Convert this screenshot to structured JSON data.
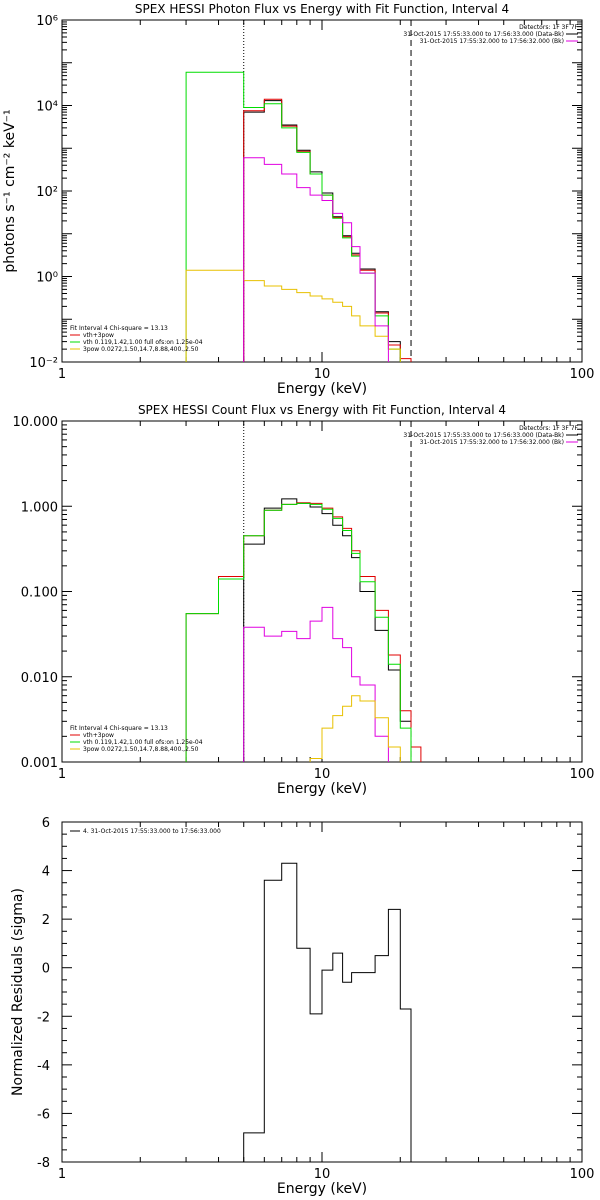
{
  "chart_data": [
    {
      "type": "step",
      "title": "SPEX HESSI Photon Flux vs Energy with Fit Function, Interval 4",
      "xlabel": "Energy (keV)",
      "ylabel": "photons s⁻¹ cm⁻² keV⁻¹",
      "xscale": "log",
      "yscale": "log",
      "xlim": [
        1,
        100
      ],
      "ylim": [
        0.01,
        1000000
      ],
      "x_ticks": [
        "1",
        "10",
        "100"
      ],
      "y_ticks": [
        "10⁻²",
        "10⁰",
        "10²",
        "10⁴",
        "10⁶"
      ],
      "vlines": [
        {
          "x": 5,
          "style": "dotted"
        },
        {
          "x": 22,
          "style": "dashed"
        }
      ],
      "header": {
        "detectors": "Detectors: 1F 3F 7F",
        "lines": [
          {
            "text": "31-Oct-2015 17:55:33.000 to 17:56:33.000 (Data-Bk)",
            "color": "#000000"
          },
          {
            "text": "31-Oct-2015 17:55:32.000 to 17:56:32.000 (Bk)",
            "color": "#e000e0"
          }
        ]
      },
      "legend": {
        "title": "Fit Interval  4    Chi-square = 13.13",
        "entries": [
          {
            "text": "vth+3pow",
            "color": "#e00000"
          },
          {
            "text": "vth 0.119,1.42,1.00  full ofs:on 1.25e-04",
            "color": "#00dd00"
          },
          {
            "text": "3pow 0.0272,1.50,14.7,8.88,400.,2.50",
            "color": "#e8c000"
          }
        ]
      },
      "edges": [
        3,
        4,
        5,
        6,
        7,
        8,
        9,
        10,
        11,
        12,
        13,
        14,
        16,
        18,
        20,
        22,
        24
      ],
      "series": [
        {
          "name": "Data-Bk",
          "color": "#000000",
          "x0": 5,
          "values": [
            7000,
            13000,
            3500,
            900,
            280,
            90,
            25,
            9,
            3.5,
            1.5,
            0.15,
            0.03
          ]
        },
        {
          "name": "vth+3pow",
          "color": "#e00000",
          "x0": 5,
          "values": [
            7500,
            14000,
            3300,
            850,
            250,
            80,
            24,
            8.5,
            3.2,
            1.4,
            0.14,
            0.025,
            0.012
          ]
        },
        {
          "name": "vth",
          "color": "#00dd00",
          "x0": 3,
          "values": [
            60000,
            60000,
            9000,
            11000,
            3000,
            800,
            250,
            80,
            23,
            8,
            3,
            1.2,
            0.12,
            0.02
          ]
        },
        {
          "name": "3pow",
          "color": "#e8c000",
          "x0": 3,
          "values": [
            1.4,
            1.4,
            0.8,
            0.6,
            0.5,
            0.42,
            0.35,
            0.3,
            0.25,
            0.2,
            0.12,
            0.07,
            0.04,
            0.02
          ]
        },
        {
          "name": "Bk",
          "color": "#e000e0",
          "x0": 5,
          "values": [
            600,
            420,
            250,
            120,
            80,
            60,
            30,
            18,
            5,
            1.2,
            0.07
          ]
        }
      ]
    },
    {
      "type": "step",
      "title": "SPEX HESSI Count Flux vs Energy with Fit Function, Interval 4",
      "xlabel": "Energy (keV)",
      "ylabel": "",
      "xscale": "log",
      "yscale": "log",
      "xlim": [
        1,
        100
      ],
      "ylim": [
        0.001,
        10
      ],
      "x_ticks": [
        "1",
        "10",
        "100"
      ],
      "y_ticks": [
        "0.001",
        "0.010",
        "0.100",
        "1.000",
        "10.000"
      ],
      "vlines": [
        {
          "x": 5,
          "style": "dotted"
        },
        {
          "x": 22,
          "style": "dashed"
        }
      ],
      "header": {
        "detectors": "Detectors: 1F 3F 7F",
        "lines": [
          {
            "text": "31-Oct-2015 17:55:33.000 to 17:56:33.000 (Data-Bk)",
            "color": "#000000"
          },
          {
            "text": "31-Oct-2015 17:55:32.000 to 17:56:32.000 (Bk)",
            "color": "#e000e0"
          }
        ]
      },
      "legend": {
        "title": "Fit Interval  4    Chi-square = 13.13",
        "entries": [
          {
            "text": "vth+3pow",
            "color": "#e00000"
          },
          {
            "text": "vth 0.119,1.42,1.00  full ofs:on 1.25e-04",
            "color": "#00dd00"
          },
          {
            "text": "3pow 0.0272,1.50,14.7,8.88,400.,2.50",
            "color": "#e8c000"
          }
        ]
      },
      "edges": [
        3,
        4,
        5,
        6,
        7,
        8,
        9,
        10,
        11,
        12,
        13,
        14,
        16,
        18,
        20,
        22,
        24
      ],
      "series": [
        {
          "name": "Data-Bk",
          "color": "#000000",
          "x0": 5,
          "values": [
            0.36,
            0.95,
            1.22,
            1.08,
            0.98,
            0.82,
            0.6,
            0.45,
            0.25,
            0.1,
            0.035,
            0.012,
            0.003
          ]
        },
        {
          "name": "vth+3pow",
          "color": "#e00000",
          "x0": 3,
          "values": [
            0.055,
            0.15,
            0.45,
            0.9,
            1.05,
            1.1,
            1.08,
            0.95,
            0.75,
            0.55,
            0.3,
            0.15,
            0.06,
            0.018,
            0.004,
            0.0015
          ]
        },
        {
          "name": "vth",
          "color": "#00dd00",
          "x0": 3,
          "values": [
            0.055,
            0.14,
            0.45,
            0.9,
            1.05,
            1.08,
            1.05,
            0.92,
            0.72,
            0.52,
            0.28,
            0.13,
            0.05,
            0.014,
            0.0025
          ]
        },
        {
          "name": "Bk",
          "color": "#e000e0",
          "x0": 5,
          "values": [
            0.038,
            0.03,
            0.034,
            0.028,
            0.045,
            0.065,
            0.028,
            0.022,
            0.01,
            0.008,
            0.002
          ]
        },
        {
          "name": "3pow",
          "color": "#e8c000",
          "x0": 9,
          "values": [
            0.0011,
            0.0025,
            0.0035,
            0.0045,
            0.006,
            0.0052,
            0.0033,
            0.0015
          ]
        }
      ]
    },
    {
      "type": "step",
      "title": "",
      "xlabel": "Energy (keV)",
      "ylabel": "Normalized Residuals (sigma)",
      "xscale": "log",
      "yscale": "linear",
      "xlim": [
        1,
        100
      ],
      "ylim": [
        -8,
        6
      ],
      "x_ticks": [
        "1",
        "10",
        "100"
      ],
      "y_ticks": [
        "-8",
        "-6",
        "-4",
        "-2",
        "0",
        "2",
        "4",
        "6"
      ],
      "legend": {
        "entries": [
          {
            "text": "4. 31-Oct-2015 17:55:33.000 to 17:56:33.000",
            "color": "#000000"
          }
        ]
      },
      "edges": [
        5,
        6,
        7,
        8,
        9,
        10,
        11,
        12,
        13,
        14,
        16,
        18,
        20,
        22
      ],
      "series": [
        {
          "name": "",
          "color": "#000000",
          "x0": 5,
          "values": [
            -6.8,
            3.6,
            4.3,
            0.8,
            -1.9,
            -0.1,
            0.6,
            -0.6,
            -0.2,
            -0.2,
            0.5,
            2.4,
            -1.7
          ]
        }
      ]
    }
  ]
}
